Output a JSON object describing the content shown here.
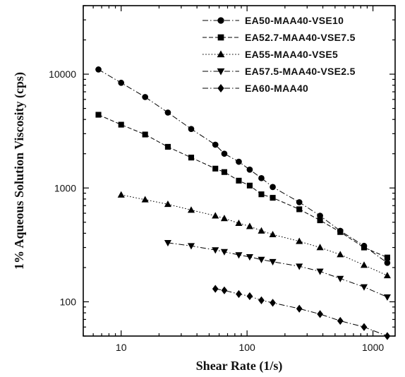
{
  "chart_data": {
    "type": "line",
    "xlabel": "Shear Rate (1/s)",
    "ylabel": "1% Aqueous Solution Viscosity (cps)",
    "xscale": "log",
    "yscale": "log",
    "xlim": [
      5,
      1500
    ],
    "ylim": [
      50,
      40000
    ],
    "x_ticks": [
      10,
      100,
      1000
    ],
    "x_tick_labels": [
      "10",
      "100",
      "1000"
    ],
    "y_ticks": [
      100,
      1000,
      10000
    ],
    "y_tick_labels": [
      "100",
      "1000",
      "10000"
    ],
    "grid": false,
    "legend": "top-right",
    "series": [
      {
        "name": "EA50-MAA40-VSE10",
        "marker": "circle",
        "line": "dashdot",
        "x": [
          6.6,
          10,
          15.5,
          23.5,
          36,
          56,
          66,
          86,
          105,
          130,
          160,
          260,
          380,
          550,
          850,
          1300
        ],
        "y": [
          11000,
          8400,
          6300,
          4600,
          3300,
          2400,
          2000,
          1700,
          1450,
          1220,
          1020,
          750,
          570,
          420,
          310,
          220
        ]
      },
      {
        "name": "EA52.7-MAA40-VSE7.5",
        "marker": "square",
        "line": "dash",
        "x": [
          6.6,
          10,
          15.5,
          23.5,
          36,
          56,
          66,
          86,
          105,
          130,
          160,
          260,
          380,
          550,
          850,
          1300
        ],
        "y": [
          4400,
          3600,
          2950,
          2300,
          1850,
          1480,
          1380,
          1160,
          1050,
          880,
          820,
          650,
          520,
          410,
          300,
          245
        ]
      },
      {
        "name": "EA55-MAA40-VSE5",
        "marker": "triangle-up",
        "line": "dotted",
        "x": [
          10,
          15.5,
          23.5,
          36,
          56,
          66,
          86,
          105,
          130,
          160,
          260,
          380,
          550,
          850,
          1300
        ],
        "y": [
          870,
          790,
          720,
          640,
          570,
          540,
          490,
          460,
          420,
          390,
          340,
          300,
          260,
          210,
          170
        ]
      },
      {
        "name": "EA57.5-MAA40-VSE2.5",
        "marker": "triangle-down",
        "line": "dashdot",
        "x": [
          23.5,
          36,
          56,
          66,
          86,
          105,
          130,
          160,
          260,
          380,
          550,
          850,
          1300
        ],
        "y": [
          330,
          310,
          285,
          275,
          258,
          248,
          235,
          225,
          205,
          185,
          160,
          135,
          110
        ]
      },
      {
        "name": "EA60-MAA40",
        "marker": "diamond",
        "line": "dashdot",
        "x": [
          56,
          66,
          86,
          105,
          130,
          160,
          260,
          380,
          550,
          850,
          1300
        ],
        "y": [
          130,
          126,
          117,
          112,
          103,
          98,
          87,
          78,
          68,
          60,
          50
        ]
      }
    ]
  }
}
